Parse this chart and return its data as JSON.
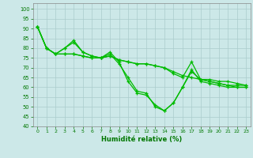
{
  "title": "",
  "xlabel": "Humidité relative (%)",
  "ylabel": "",
  "bg_color": "#cce8e8",
  "grid_color": "#aacccc",
  "line_color": "#00bb00",
  "xlim": [
    -0.5,
    23.5
  ],
  "ylim": [
    40,
    103
  ],
  "yticks": [
    40,
    45,
    50,
    55,
    60,
    65,
    70,
    75,
    80,
    85,
    90,
    95,
    100
  ],
  "xticks": [
    0,
    1,
    2,
    3,
    4,
    5,
    6,
    7,
    8,
    9,
    10,
    11,
    12,
    13,
    14,
    15,
    16,
    17,
    18,
    19,
    20,
    21,
    22,
    23
  ],
  "series": [
    [
      91,
      80,
      77,
      80,
      83,
      78,
      76,
      75,
      78,
      73,
      63,
      57,
      56,
      51,
      48,
      52,
      60,
      68,
      64,
      63,
      62,
      61,
      61,
      61
    ],
    [
      91,
      80,
      77,
      80,
      84,
      78,
      76,
      75,
      77,
      72,
      65,
      58,
      57,
      50,
      48,
      52,
      60,
      69,
      63,
      62,
      61,
      60,
      60,
      60
    ],
    [
      91,
      80,
      77,
      77,
      77,
      76,
      75,
      75,
      76,
      74,
      73,
      72,
      72,
      71,
      70,
      68,
      66,
      65,
      64,
      64,
      63,
      63,
      62,
      61
    ],
    [
      91,
      80,
      77,
      77,
      77,
      76,
      75,
      75,
      76,
      74,
      73,
      72,
      72,
      71,
      70,
      67,
      65,
      73,
      64,
      63,
      62,
      61,
      60,
      60
    ]
  ]
}
